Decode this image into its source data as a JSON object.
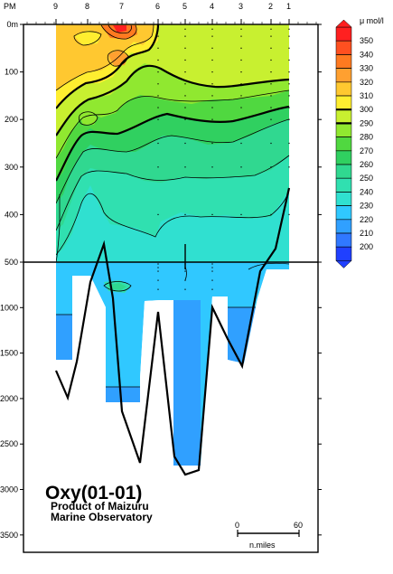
{
  "chart_data": {
    "type": "heatmap",
    "title": "Oxy(01-01)",
    "subtitle_lines": [
      "Product of Maizuru",
      "Marine Observatory"
    ],
    "x_axis_label": "PM",
    "stations": [
      "9",
      "8",
      "7",
      "6",
      "5",
      "4",
      "3",
      "2",
      "1"
    ],
    "upper_depth_ticks": [
      {
        "depth": 0,
        "label": "0m"
      },
      {
        "depth": 100,
        "label": "100"
      },
      {
        "depth": 200,
        "label": "200"
      },
      {
        "depth": 300,
        "label": "300"
      },
      {
        "depth": 400,
        "label": "400"
      },
      {
        "depth": 500,
        "label": "500"
      }
    ],
    "lower_depth_ticks": [
      {
        "depth": 1000,
        "label": "1000"
      },
      {
        "depth": 1500,
        "label": "1500"
      },
      {
        "depth": 2000,
        "label": "2000"
      },
      {
        "depth": 2500,
        "label": "2500"
      },
      {
        "depth": 3000,
        "label": "3000"
      },
      {
        "depth": 3500,
        "label": "3500"
      }
    ],
    "upper_range": [
      0,
      500
    ],
    "lower_range": [
      500,
      3800
    ],
    "legend": {
      "unit": "μ mol/l",
      "levels": [
        {
          "value": 350,
          "label": "350",
          "color": "#ff2020"
        },
        {
          "value": 340,
          "label": "340",
          "color": "#ff5020"
        },
        {
          "value": 330,
          "label": "330",
          "color": "#ff7a20"
        },
        {
          "value": 320,
          "label": "320",
          "color": "#ffa030"
        },
        {
          "value": 310,
          "label": "310",
          "color": "#ffc830"
        },
        {
          "value": 300,
          "label": "300",
          "color": "#ffee30"
        },
        {
          "value": 290,
          "label": "290",
          "color": "#c8f030"
        },
        {
          "value": 280,
          "label": "280",
          "color": "#90e830"
        },
        {
          "value": 270,
          "label": "270",
          "color": "#50d840"
        },
        {
          "value": 260,
          "label": "260",
          "color": "#30d060"
        },
        {
          "value": 250,
          "label": "250",
          "color": "#30d890"
        },
        {
          "value": 240,
          "label": "240",
          "color": "#30e0b0"
        },
        {
          "value": 230,
          "label": "230",
          "color": "#30e0d0"
        },
        {
          "value": 220,
          "label": "220",
          "color": "#30c8ff"
        },
        {
          "value": 210,
          "label": "210",
          "color": "#30a0ff"
        },
        {
          "value": 200,
          "label": "200",
          "color": "#3078ff"
        },
        {
          "value": 190,
          "label": "",
          "color": "#2040ff"
        }
      ],
      "bold_levels": [
        300,
        290
      ]
    },
    "scale_bar": {
      "start_label": "0",
      "end_label": "60",
      "unit": "n.miles"
    }
  }
}
